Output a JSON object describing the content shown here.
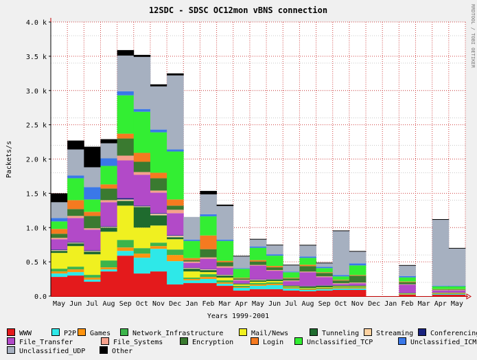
{
  "chart_data": {
    "type": "bar",
    "stacked": true,
    "title": "12SDC - SDSC OC12mon vBNS connection",
    "ylabel": "Packets/s",
    "xlabel": "Years 1999-2001",
    "side_label": "RRDTOOL / TOBI OETIKER",
    "ylim": [
      0,
      4000
    ],
    "yticks": [
      {
        "v": 0,
        "label": "0.0"
      },
      {
        "v": 500,
        "label": "0.5 k"
      },
      {
        "v": 1000,
        "label": "1.0 k"
      },
      {
        "v": 1500,
        "label": "1.5 k"
      },
      {
        "v": 2000,
        "label": "2.0 k"
      },
      {
        "v": 2500,
        "label": "2.5 k"
      },
      {
        "v": 3000,
        "label": "3.0 k"
      },
      {
        "v": 3500,
        "label": "3.5 k"
      },
      {
        "v": 4000,
        "label": "4.0 k"
      }
    ],
    "categories": [
      "May",
      "Jun",
      "Jul",
      "Aug",
      "Sep",
      "Oct",
      "Nov",
      "Dec",
      "Jan",
      "Feb",
      "Mar",
      "Apr",
      "May",
      "Jun",
      "Jul",
      "Aug",
      "Sep",
      "Oct",
      "Nov",
      "Dec",
      "Jan",
      "Feb",
      "Mar",
      "Apr",
      "May"
    ],
    "grid": true,
    "legend_position": "bottom",
    "series": [
      {
        "name": "WWW",
        "color": "#e41a1c",
        "values": [
          280,
          300,
          210,
          360,
          590,
          330,
          360,
          170,
          190,
          190,
          150,
          80,
          100,
          100,
          80,
          70,
          80,
          90,
          90,
          0,
          0,
          20,
          0,
          20,
          20
        ]
      },
      {
        "name": "P2P",
        "color": "#2ee8e8",
        "values": [
          50,
          50,
          30,
          30,
          70,
          230,
          330,
          340,
          40,
          60,
          30,
          40,
          50,
          60,
          30,
          20,
          20,
          20,
          20,
          0,
          0,
          5,
          0,
          10,
          10
        ]
      },
      {
        "name": "Games",
        "color": "#ff9410",
        "values": [
          30,
          40,
          30,
          30,
          50,
          60,
          40,
          90,
          20,
          30,
          20,
          10,
          20,
          20,
          10,
          10,
          10,
          10,
          10,
          0,
          0,
          5,
          0,
          5,
          5
        ]
      },
      {
        "name": "Network_Infrastructure",
        "color": "#3cb44b",
        "values": [
          40,
          40,
          40,
          100,
          110,
          80,
          50,
          80,
          20,
          40,
          30,
          20,
          20,
          20,
          10,
          10,
          10,
          10,
          10,
          0,
          0,
          5,
          0,
          5,
          5
        ]
      },
      {
        "name": "Mail/News",
        "color": "#f0f020",
        "values": [
          230,
          300,
          300,
          420,
          500,
          300,
          250,
          150,
          90,
          30,
          40,
          20,
          20,
          20,
          10,
          10,
          10,
          10,
          10,
          0,
          0,
          5,
          0,
          5,
          5
        ]
      },
      {
        "name": "Tunneling",
        "color": "#1f6b2e",
        "values": [
          30,
          40,
          40,
          60,
          70,
          300,
          150,
          30,
          40,
          30,
          30,
          10,
          20,
          20,
          10,
          20,
          20,
          10,
          10,
          0,
          0,
          5,
          0,
          5,
          5
        ]
      },
      {
        "name": "Streaming",
        "color": "#ffd2a0",
        "values": [
          10,
          10,
          10,
          10,
          20,
          10,
          20,
          20,
          10,
          10,
          10,
          5,
          10,
          5,
          5,
          5,
          5,
          5,
          5,
          0,
          0,
          2,
          0,
          2,
          2
        ]
      },
      {
        "name": "Conferencing",
        "color": "#1a237e",
        "values": [
          10,
          10,
          10,
          10,
          20,
          10,
          10,
          10,
          5,
          5,
          5,
          3,
          5,
          5,
          3,
          3,
          3,
          3,
          3,
          0,
          0,
          1,
          0,
          1,
          1
        ]
      },
      {
        "name": "File_Transfer",
        "color": "#b24ac8",
        "values": [
          150,
          350,
          300,
          350,
          550,
          450,
          300,
          320,
          70,
          150,
          100,
          40,
          200,
          120,
          60,
          200,
          120,
          20,
          30,
          0,
          0,
          120,
          0,
          30,
          30
        ]
      },
      {
        "name": "File_Systems",
        "color": "#f6a08c",
        "values": [
          20,
          30,
          20,
          30,
          70,
          40,
          30,
          50,
          20,
          20,
          20,
          10,
          10,
          10,
          10,
          10,
          10,
          10,
          10,
          0,
          0,
          5,
          0,
          5,
          5
        ]
      },
      {
        "name": "Encryption",
        "color": "#3a7a30",
        "values": [
          60,
          100,
          180,
          170,
          250,
          150,
          180,
          60,
          20,
          120,
          60,
          20,
          50,
          40,
          30,
          80,
          50,
          40,
          100,
          0,
          0,
          30,
          0,
          10,
          10
        ]
      },
      {
        "name": "Login",
        "color": "#f57a20",
        "values": [
          70,
          130,
          60,
          60,
          70,
          130,
          80,
          90,
          30,
          200,
          20,
          10,
          20,
          20,
          10,
          20,
          10,
          10,
          10,
          0,
          0,
          10,
          0,
          5,
          5
        ]
      },
      {
        "name": "Unclassified_TCP",
        "color": "#33ee33",
        "values": [
          110,
          320,
          180,
          270,
          560,
          600,
          590,
          700,
          250,
          280,
          290,
          130,
          180,
          150,
          80,
          100,
          60,
          50,
          140,
          0,
          0,
          60,
          0,
          40,
          40
        ]
      },
      {
        "name": "Unclassified_ICMP",
        "color": "#3a78e8",
        "values": [
          50,
          40,
          180,
          110,
          60,
          40,
          40,
          30,
          20,
          30,
          20,
          10,
          20,
          20,
          10,
          20,
          20,
          20,
          30,
          0,
          0,
          20,
          0,
          10,
          10
        ]
      },
      {
        "name": "Unclassified_UDP",
        "color": "#a6b0c0",
        "values": [
          230,
          380,
          290,
          220,
          520,
          760,
          630,
          1080,
          330,
          290,
          490,
          170,
          100,
          130,
          90,
          160,
          50,
          640,
          170,
          0,
          0,
          150,
          0,
          960,
          540
        ]
      },
      {
        "name": "Other",
        "color": "#000000",
        "values": [
          130,
          130,
          300,
          60,
          80,
          30,
          30,
          30,
          0,
          50,
          20,
          10,
          10,
          10,
          10,
          10,
          10,
          10,
          10,
          0,
          0,
          10,
          0,
          10,
          10
        ]
      }
    ]
  }
}
